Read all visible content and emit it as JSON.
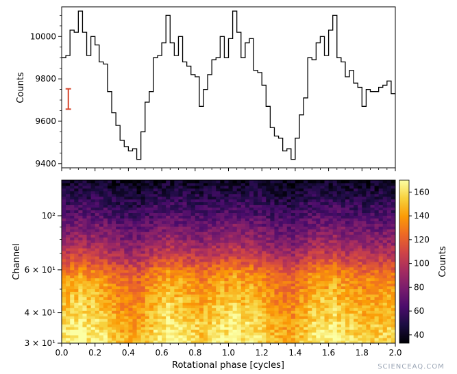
{
  "watermark": "SCIENCEAQ.COM",
  "colors": {
    "lightcurve": "#000000",
    "errorbar": "#d6452c",
    "colormap": [
      "#000004",
      "#1b0c41",
      "#4a0c6b",
      "#781c6d",
      "#a52c60",
      "#cf4446",
      "#ed6925",
      "#fb9b06",
      "#f7d13d",
      "#fcffa4"
    ]
  },
  "chart_data": [
    {
      "type": "line",
      "drawstyle": "steps",
      "ylabel": "Counts",
      "xlabel": "",
      "xlim": [
        0.0,
        2.0
      ],
      "ylim": [
        9380,
        10140
      ],
      "yticks": [
        9400,
        9600,
        9800,
        10000
      ],
      "ytick_labels": [
        "9400",
        "9600",
        "9800",
        "10000"
      ],
      "grid": false,
      "bin_width": 0.025,
      "x": [
        0.0,
        0.025,
        0.05,
        0.075,
        0.1,
        0.125,
        0.15,
        0.175,
        0.2,
        0.225,
        0.25,
        0.275,
        0.3,
        0.325,
        0.35,
        0.375,
        0.4,
        0.425,
        0.45,
        0.475,
        0.5,
        0.525,
        0.55,
        0.575,
        0.6,
        0.625,
        0.65,
        0.675,
        0.7,
        0.725,
        0.75,
        0.775,
        0.8,
        0.825,
        0.85,
        0.875,
        0.9,
        0.925,
        0.95,
        0.975,
        1.0,
        1.025,
        1.05,
        1.075,
        1.1,
        1.125,
        1.15,
        1.175,
        1.2,
        1.225,
        1.25,
        1.275,
        1.3,
        1.325,
        1.35,
        1.375,
        1.4,
        1.425,
        1.45,
        1.475,
        1.5,
        1.525,
        1.55,
        1.575,
        1.6,
        1.625,
        1.65,
        1.675,
        1.7,
        1.725,
        1.75,
        1.775,
        1.8,
        1.825,
        1.85,
        1.875,
        1.9,
        1.925,
        1.95,
        1.975
      ],
      "y": [
        9900,
        9910,
        10030,
        10020,
        10120,
        10020,
        9910,
        10000,
        9960,
        9880,
        9870,
        9740,
        9640,
        9580,
        9510,
        9480,
        9460,
        9470,
        9420,
        9550,
        9690,
        9740,
        9900,
        9910,
        9970,
        10100,
        9970,
        9910,
        10000,
        9880,
        9860,
        9820,
        9810,
        9670,
        9750,
        9820,
        9890,
        9900,
        10000,
        9900,
        9990,
        10120,
        10020,
        9900,
        9970,
        9990,
        9840,
        9830,
        9770,
        9670,
        9570,
        9530,
        9520,
        9460,
        9470,
        9420,
        9520,
        9630,
        9710,
        9900,
        9890,
        9970,
        10000,
        9910,
        10030,
        10100,
        9900,
        9880,
        9810,
        9840,
        9780,
        9760,
        9670,
        9750,
        9740,
        9740,
        9760,
        9770,
        9790,
        9730
      ],
      "errorbar": {
        "x": 0.04,
        "y": 9705,
        "yerr": 48
      }
    },
    {
      "type": "heatmap",
      "xlabel": "Rotational phase [cycles]",
      "ylabel": "Channel",
      "xlim": [
        0.0,
        2.0
      ],
      "xticks": [
        0.0,
        0.2,
        0.4,
        0.6,
        0.8,
        1.0,
        1.2,
        1.4,
        1.6,
        1.8,
        2.0
      ],
      "xtick_labels": [
        "0.0",
        "0.2",
        "0.4",
        "0.6",
        "0.8",
        "1.0",
        "1.2",
        "1.4",
        "1.6",
        "1.8",
        "2.0"
      ],
      "yscale": "log",
      "ylim": [
        30,
        140
      ],
      "yticks": [
        30,
        40,
        60,
        100
      ],
      "ytick_labels": [
        "3 × 10¹",
        "4 × 10¹",
        "6 × 10¹",
        "10²"
      ],
      "n_phase_bins": 80,
      "n_channel_bins": 60,
      "count_profile_by_channel": [
        {
          "channel": 30,
          "counts": 160
        },
        {
          "channel": 35,
          "counts": 155
        },
        {
          "channel": 40,
          "counts": 150
        },
        {
          "channel": 45,
          "counts": 145
        },
        {
          "channel": 50,
          "counts": 140
        },
        {
          "channel": 55,
          "counts": 135
        },
        {
          "channel": 60,
          "counts": 125
        },
        {
          "channel": 65,
          "counts": 110
        },
        {
          "channel": 70,
          "counts": 100
        },
        {
          "channel": 80,
          "counts": 85
        },
        {
          "channel": 90,
          "counts": 75
        },
        {
          "channel": 100,
          "counts": 65
        },
        {
          "channel": 115,
          "counts": 55
        },
        {
          "channel": 130,
          "counts": 45
        },
        {
          "channel": 140,
          "counts": 40
        }
      ],
      "colorbar": {
        "label": "Counts",
        "range": [
          33,
          170
        ],
        "ticks": [
          40,
          60,
          80,
          100,
          120,
          140,
          160
        ],
        "tick_labels": [
          "40",
          "60",
          "80",
          "100",
          "120",
          "140",
          "160"
        ]
      }
    }
  ]
}
